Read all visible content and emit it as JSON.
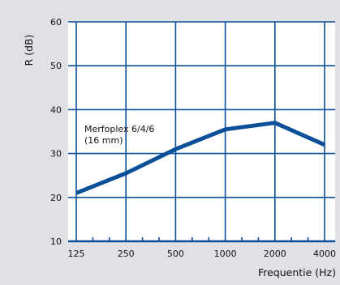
{
  "chart_data": {
    "type": "line",
    "title": "",
    "xlabel": "Frequentie (Hz)",
    "ylabel": "R (dB)",
    "x_scale": "log",
    "x_ticks": [
      "125",
      "250",
      "500",
      "1000",
      "2000",
      "4000"
    ],
    "x_tick_values": [
      125,
      250,
      500,
      1000,
      2000,
      4000
    ],
    "y_ticks": [
      "10",
      "20",
      "30",
      "40",
      "50",
      "60"
    ],
    "y_tick_values": [
      10,
      20,
      30,
      40,
      50,
      60
    ],
    "ylim": [
      10,
      60
    ],
    "grid": true,
    "series": [
      {
        "name": "",
        "x": [
          125,
          250,
          500,
          1000,
          2000,
          4000
        ],
        "y": [
          21,
          25.5,
          31,
          35.5,
          37,
          32
        ]
      }
    ],
    "annotation_lines": [
      "Merfoplex 6/4/6",
      "(16 mm)"
    ],
    "colors": {
      "line": "#0a4f99",
      "grid": "#0a4f99",
      "panel": "#ffffff",
      "background": "#dfe1e4"
    }
  }
}
